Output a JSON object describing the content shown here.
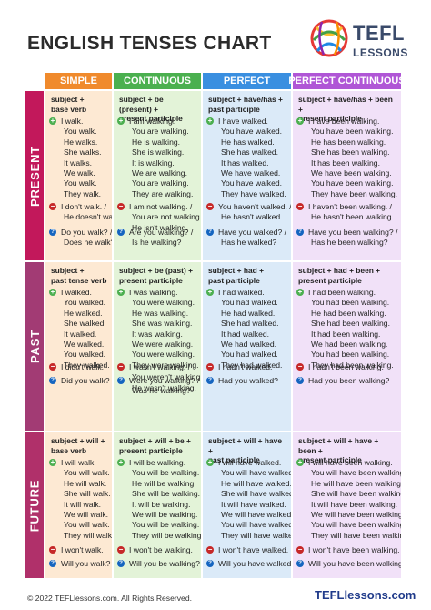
{
  "title": "ENGLISH TENSES CHART",
  "logo": {
    "line1": "TEFL",
    "line2": "LESSONS"
  },
  "columns": [
    "SIMPLE",
    "CONTINUOUS",
    "PERFECT",
    "PERFECT CONTINUOUS"
  ],
  "rows": [
    "PRESENT",
    "PAST",
    "FUTURE"
  ],
  "colors": {
    "simple_head": "#f08a2c",
    "continuous_head": "#4bb04f",
    "perfect_head": "#3a8fe0",
    "perfect_cont_head": "#b056d6",
    "simple_bg": "#fde9d3",
    "continuous_bg": "#e3f3d8",
    "perfect_bg": "#dbeaf8",
    "perfect_cont_bg": "#f1e1f8",
    "present_label": "#c2185b",
    "past_label": "#a23b74",
    "future_label": "#b0306a"
  },
  "cells": {
    "present_simple": {
      "formula": [
        "subject +",
        "base verb"
      ],
      "pos": [
        "I walk.",
        "You walk.",
        "He walks.",
        "She walks.",
        "It walks.",
        "We walk.",
        "You walk.",
        "They walk."
      ],
      "neg": [
        "I don't walk. /",
        "He doesn't walk."
      ],
      "q": [
        "Do you walk? /",
        "Does he walk?"
      ]
    },
    "present_continuous": {
      "formula": [
        "subject + be (present) +",
        "present participle"
      ],
      "pos": [
        "I am walking.",
        "You are walking.",
        "He is walking.",
        "She is walking.",
        "It is walking.",
        "We are walking.",
        "You are walking.",
        "They are walking."
      ],
      "neg": [
        "I am not walking. /",
        "You are not walking. /",
        "He isn't walking."
      ],
      "q": [
        "Are you walking? /",
        "Is he walking?"
      ]
    },
    "present_perfect": {
      "formula": [
        "subject + have/has +",
        "past participle"
      ],
      "pos": [
        "I have walked.",
        "You have walked.",
        "He has walked.",
        "She has walked.",
        "It has walked.",
        "We have walked.",
        "You have walked.",
        "They have walked."
      ],
      "neg": [
        "You haven't walked. /",
        "He hasn't walked."
      ],
      "q": [
        "Have you walked? /",
        "Has he walked?"
      ]
    },
    "present_perfect_continuous": {
      "formula": [
        "subject + have/has + been +",
        "present participle"
      ],
      "pos": [
        "I have been walking.",
        "You have been walking.",
        "He has been walking.",
        "She has been walking.",
        "It has been walking.",
        "We have been walking.",
        "You have been walking.",
        "They have been walking."
      ],
      "neg": [
        "I haven't been walking. /",
        "He hasn't been walking."
      ],
      "q": [
        "Have you been walking? /",
        "Has he been walking?"
      ]
    },
    "past_simple": {
      "formula": [
        "subject +",
        "past tense verb"
      ],
      "pos": [
        "I walked.",
        "You walked.",
        "He walked.",
        "She walked.",
        "It walked.",
        "We walked.",
        "You walked.",
        "They walked."
      ],
      "neg": [
        "I didn't walk."
      ],
      "q": [
        "Did you walk?"
      ]
    },
    "past_continuous": {
      "formula": [
        "subject + be (past) +",
        "present participle"
      ],
      "pos": [
        "I was walking.",
        "You were walking.",
        "He was walking.",
        "She was walking.",
        "It was walking.",
        "We were walking.",
        "You were walking.",
        "They were walking."
      ],
      "neg": [
        "I wasn't walking. /",
        "You weren't walking. /",
        "He wasn't walking."
      ],
      "q": [
        "Were you walking? /",
        "Was he walking?"
      ]
    },
    "past_perfect": {
      "formula": [
        "subject + had +",
        "past participle"
      ],
      "pos": [
        "I had walked.",
        "You had walked.",
        "He had walked.",
        "She had walked.",
        "It had walked.",
        "We had walked.",
        "You had walked.",
        "They had walked."
      ],
      "neg": [
        "I hadn't walked."
      ],
      "q": [
        "Had you walked?"
      ]
    },
    "past_perfect_continuous": {
      "formula": [
        "subject + had + been +",
        "present participle"
      ],
      "pos": [
        "I had been walking.",
        "You had been walking.",
        "He had been walking.",
        "She had been walking.",
        "It had been walking.",
        "We had been walking.",
        "You had been walking.",
        "They had been walking."
      ],
      "neg": [
        "I hadn't been walking."
      ],
      "q": [
        "Had you been walking?"
      ]
    },
    "future_simple": {
      "formula": [
        "subject + will +",
        "base verb"
      ],
      "pos": [
        "I will walk.",
        "You will walk.",
        "He will walk.",
        "She will walk.",
        "It will walk.",
        "We will walk.",
        "You will walk.",
        "They will walk."
      ],
      "neg": [
        "I won't walk."
      ],
      "q": [
        "Will you walk?"
      ]
    },
    "future_continuous": {
      "formula": [
        "subject + will + be +",
        "present participle"
      ],
      "pos": [
        "I will be walking.",
        "You will be walking.",
        "He will be walking.",
        "She will be walking.",
        "It will be walking.",
        "We will be walking.",
        "You will be walking.",
        "They will be walking."
      ],
      "neg": [
        "I won't be walking."
      ],
      "q": [
        "Will you be walking?"
      ]
    },
    "future_perfect": {
      "formula": [
        "subject + will + have +",
        "past participle"
      ],
      "pos": [
        "I will have walked.",
        "You will have walked.",
        "He will have walked.",
        "She will have walked.",
        "It will have walked.",
        "We will have walked.",
        "You will have walked.",
        "They will have walked."
      ],
      "neg": [
        "I won't have walked."
      ],
      "q": [
        "Will you have walked?"
      ]
    },
    "future_perfect_continuous": {
      "formula": [
        "subject + will + have + been +",
        "present participle"
      ],
      "pos": [
        "I will have been walking.",
        "You will have been walking.",
        "He will have been walking.",
        "She will have been walking.",
        "It will have been walking.",
        "We will have been walking.",
        "You will have been walking.",
        "They will have been walking."
      ],
      "neg": [
        "I won't have been walking."
      ],
      "q": [
        "Will you have been walking?"
      ]
    }
  },
  "footer": {
    "copyright": "© 2022 TEFLlessons.com. All Rights Reserved.",
    "site": "TEFLlessons.com"
  }
}
